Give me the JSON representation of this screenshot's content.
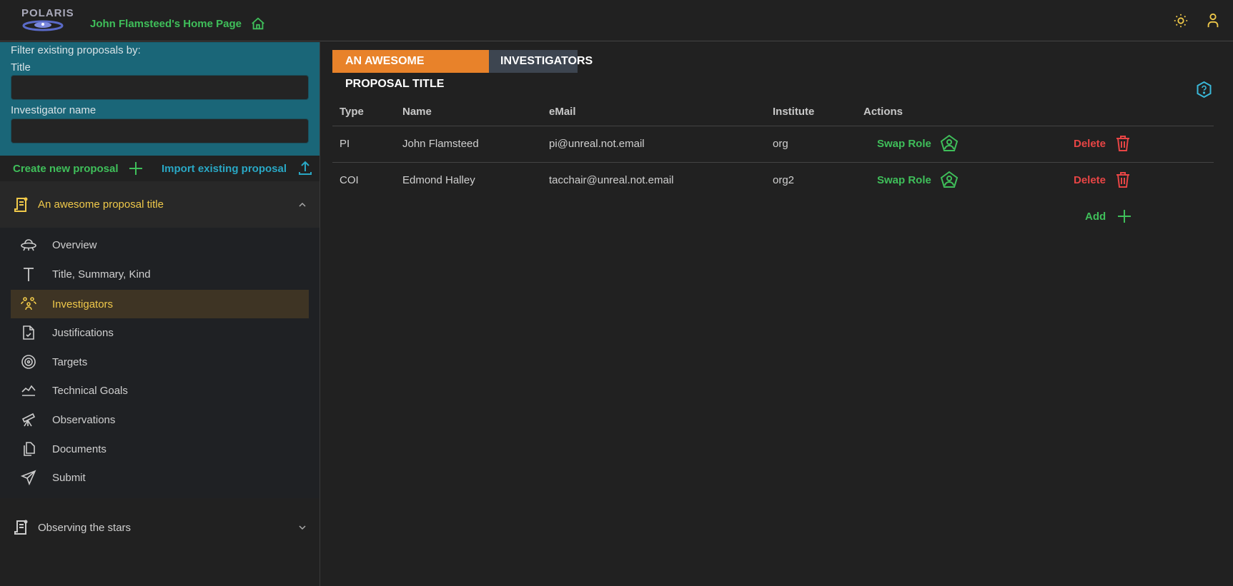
{
  "header": {
    "logo_text": "POLARIS",
    "home_title": "John Flamsteed's Home Page",
    "icons": [
      "home-icon",
      "sun-icon",
      "user-icon"
    ]
  },
  "sidebar": {
    "filter_heading": "Filter existing proposals by:",
    "title_label": "Title",
    "title_value": "",
    "investigator_label": "Investigator name",
    "investigator_value": "",
    "create_label": "Create new proposal",
    "import_label": "Import existing proposal",
    "proposals": [
      {
        "title": "An awesome proposal title",
        "expanded": true
      },
      {
        "title": "Observing the stars",
        "expanded": false
      }
    ],
    "nav": [
      {
        "label": "Overview",
        "icon": "ufo-icon"
      },
      {
        "label": "Title, Summary, Kind",
        "icon": "letter-t-icon"
      },
      {
        "label": "Investigators",
        "icon": "users-group-icon",
        "active": true
      },
      {
        "label": "Justifications",
        "icon": "file-check-icon"
      },
      {
        "label": "Targets",
        "icon": "target-icon"
      },
      {
        "label": "Technical Goals",
        "icon": "chart-line-icon"
      },
      {
        "label": "Observations",
        "icon": "telescope-icon"
      },
      {
        "label": "Documents",
        "icon": "files-icon"
      },
      {
        "label": "Submit",
        "icon": "send-icon"
      }
    ]
  },
  "main": {
    "tabs": [
      "AN AWESOME PROPOSAL TITLE",
      "INVESTIGATORS"
    ],
    "colors": {
      "title_tab": "#e8822a",
      "section_tab": "#3d4550",
      "accent_green": "#3fbf5a",
      "danger": "#e84545",
      "active_nav": "#f0c94a"
    },
    "table": {
      "headers": [
        "Type",
        "Name",
        "eMail",
        "Institute",
        "Actions"
      ],
      "rows": [
        {
          "type": "PI",
          "name": "John Flamsteed",
          "email": "pi@unreal.not.email",
          "institute": "org"
        },
        {
          "type": "COI",
          "name": "Edmond Halley",
          "email": "tacchair@unreal.not.email",
          "institute": "org2"
        }
      ],
      "swap_label": "Swap Role",
      "delete_label": "Delete",
      "add_label": "Add"
    }
  }
}
